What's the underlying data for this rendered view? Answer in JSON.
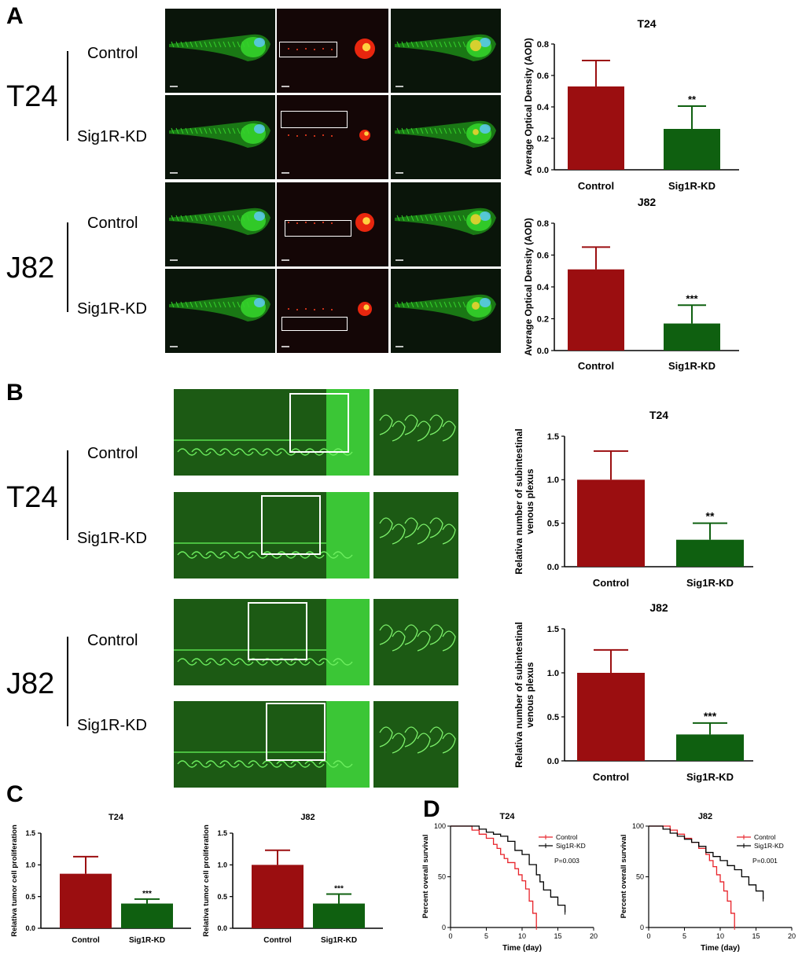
{
  "panels": {
    "a": "A",
    "b": "B",
    "c": "C",
    "d": "D"
  },
  "cell_lines": {
    "t24": "T24",
    "j82": "J82"
  },
  "groups": {
    "control": "Control",
    "kd": "Sig1R-KD"
  },
  "colors": {
    "control_bar": "#9b0e10",
    "kd_bar": "#0f6010",
    "km_control": "#e8232a",
    "km_kd": "#000000",
    "fluor_green": "#34d12a",
    "tumor_red": "#ff2a10"
  },
  "chart_data": [
    {
      "id": "A-T24",
      "type": "bar",
      "title": "T24",
      "ylabel": "Average Optical Density (AOD)",
      "categories": [
        "Control",
        "Sig1R-KD"
      ],
      "values": [
        0.53,
        0.26
      ],
      "errors": [
        0.165,
        0.145
      ],
      "significance": [
        "",
        "**"
      ],
      "ylim": [
        0,
        0.8
      ],
      "yticks": [
        "0.0",
        "0.2",
        "0.4",
        "0.6",
        "0.8"
      ]
    },
    {
      "id": "A-J82",
      "type": "bar",
      "title": "J82",
      "ylabel": "Average Optical Density (AOD)",
      "categories": [
        "Control",
        "Sig1R-KD"
      ],
      "values": [
        0.51,
        0.17
      ],
      "errors": [
        0.14,
        0.115
      ],
      "significance": [
        "",
        "***"
      ],
      "ylim": [
        0,
        0.8
      ],
      "yticks": [
        "0.0",
        "0.2",
        "0.4",
        "0.6",
        "0.8"
      ]
    },
    {
      "id": "B-T24",
      "type": "bar",
      "title": "T24",
      "ylabel": "Relativa number of subintestinal venous plexus",
      "categories": [
        "Control",
        "Sig1R-KD"
      ],
      "values": [
        1.0,
        0.31
      ],
      "errors": [
        0.33,
        0.19
      ],
      "significance": [
        "",
        "**"
      ],
      "ylim": [
        0,
        1.5
      ],
      "yticks": [
        "0.0",
        "0.5",
        "1.0",
        "1.5"
      ]
    },
    {
      "id": "B-J82",
      "type": "bar",
      "title": "J82",
      "ylabel": "Relativa number of subintestinal venous plexus",
      "categories": [
        "Control",
        "Sig1R-KD"
      ],
      "values": [
        1.0,
        0.3
      ],
      "errors": [
        0.26,
        0.13
      ],
      "significance": [
        "",
        "***"
      ],
      "ylim": [
        0,
        1.5
      ],
      "yticks": [
        "0.0",
        "0.5",
        "1.0",
        "1.5"
      ]
    },
    {
      "id": "C-T24",
      "type": "bar",
      "title": "T24",
      "ylabel": "Relativa tumor cell proliferation",
      "categories": [
        "Control",
        "Sig1R-KD"
      ],
      "values": [
        0.86,
        0.39
      ],
      "errors": [
        0.27,
        0.07
      ],
      "significance": [
        "",
        "***"
      ],
      "ylim": [
        0,
        1.5
      ],
      "yticks": [
        "0.0",
        "0.5",
        "1.0",
        "1.5"
      ]
    },
    {
      "id": "C-J82",
      "type": "bar",
      "title": "J82",
      "ylabel": "Relativa tumor cell proliferation",
      "categories": [
        "Control",
        "Sig1R-KD"
      ],
      "values": [
        1.0,
        0.39
      ],
      "errors": [
        0.23,
        0.15
      ],
      "significance": [
        "",
        "***"
      ],
      "ylim": [
        0,
        1.5
      ],
      "yticks": [
        "0.0",
        "0.5",
        "1.0",
        "1.5"
      ]
    },
    {
      "id": "D-T24",
      "type": "line",
      "title": "T24",
      "xlabel": "Time (day)",
      "ylabel": "Percent overall survival",
      "xlim": [
        0,
        20
      ],
      "ylim": [
        0,
        100
      ],
      "xticks": [
        "0",
        "5",
        "10",
        "15",
        "20"
      ],
      "yticks": [
        "0",
        "50",
        "100"
      ],
      "pvalue": "P=0.003",
      "series": [
        {
          "name": "Control",
          "x": [
            0,
            2,
            3,
            4,
            5,
            6,
            6.5,
            7,
            7.5,
            8,
            9,
            9.5,
            10,
            10.5,
            11,
            11.5,
            12
          ],
          "y": [
            100,
            100,
            96,
            92,
            88,
            82,
            78,
            72,
            68,
            64,
            58,
            52,
            46,
            38,
            26,
            14,
            0
          ]
        },
        {
          "name": "Sig1R-KD",
          "x": [
            0,
            3,
            4,
            5,
            6,
            7,
            8,
            9,
            10,
            11,
            12,
            12.5,
            13,
            14,
            15,
            16
          ],
          "y": [
            100,
            100,
            97,
            94,
            92,
            90,
            85,
            76,
            72,
            62,
            52,
            45,
            37,
            30,
            22,
            15
          ]
        }
      ]
    },
    {
      "id": "D-J82",
      "type": "line",
      "title": "J82",
      "xlabel": "Time (day)",
      "ylabel": "Percent overall survival",
      "xlim": [
        0,
        20
      ],
      "ylim": [
        0,
        100
      ],
      "xticks": [
        "0",
        "5",
        "10",
        "15",
        "20"
      ],
      "yticks": [
        "0",
        "50",
        "100"
      ],
      "pvalue": "P=0.001",
      "series": [
        {
          "name": "Control",
          "x": [
            0,
            2,
            3,
            4,
            5,
            6,
            7,
            8,
            8.5,
            9,
            9.5,
            10,
            10.5,
            11,
            11.5,
            12
          ],
          "y": [
            100,
            100,
            96,
            92,
            88,
            84,
            78,
            72,
            66,
            60,
            52,
            45,
            36,
            26,
            14,
            0
          ]
        },
        {
          "name": "Sig1R-KD",
          "x": [
            0,
            2,
            3,
            4,
            5,
            6,
            7,
            8,
            9,
            10,
            11,
            12,
            13,
            14,
            15,
            16
          ],
          "y": [
            100,
            97,
            93,
            90,
            87,
            84,
            80,
            74,
            70,
            66,
            61,
            57,
            50,
            42,
            36,
            28
          ]
        }
      ]
    }
  ]
}
